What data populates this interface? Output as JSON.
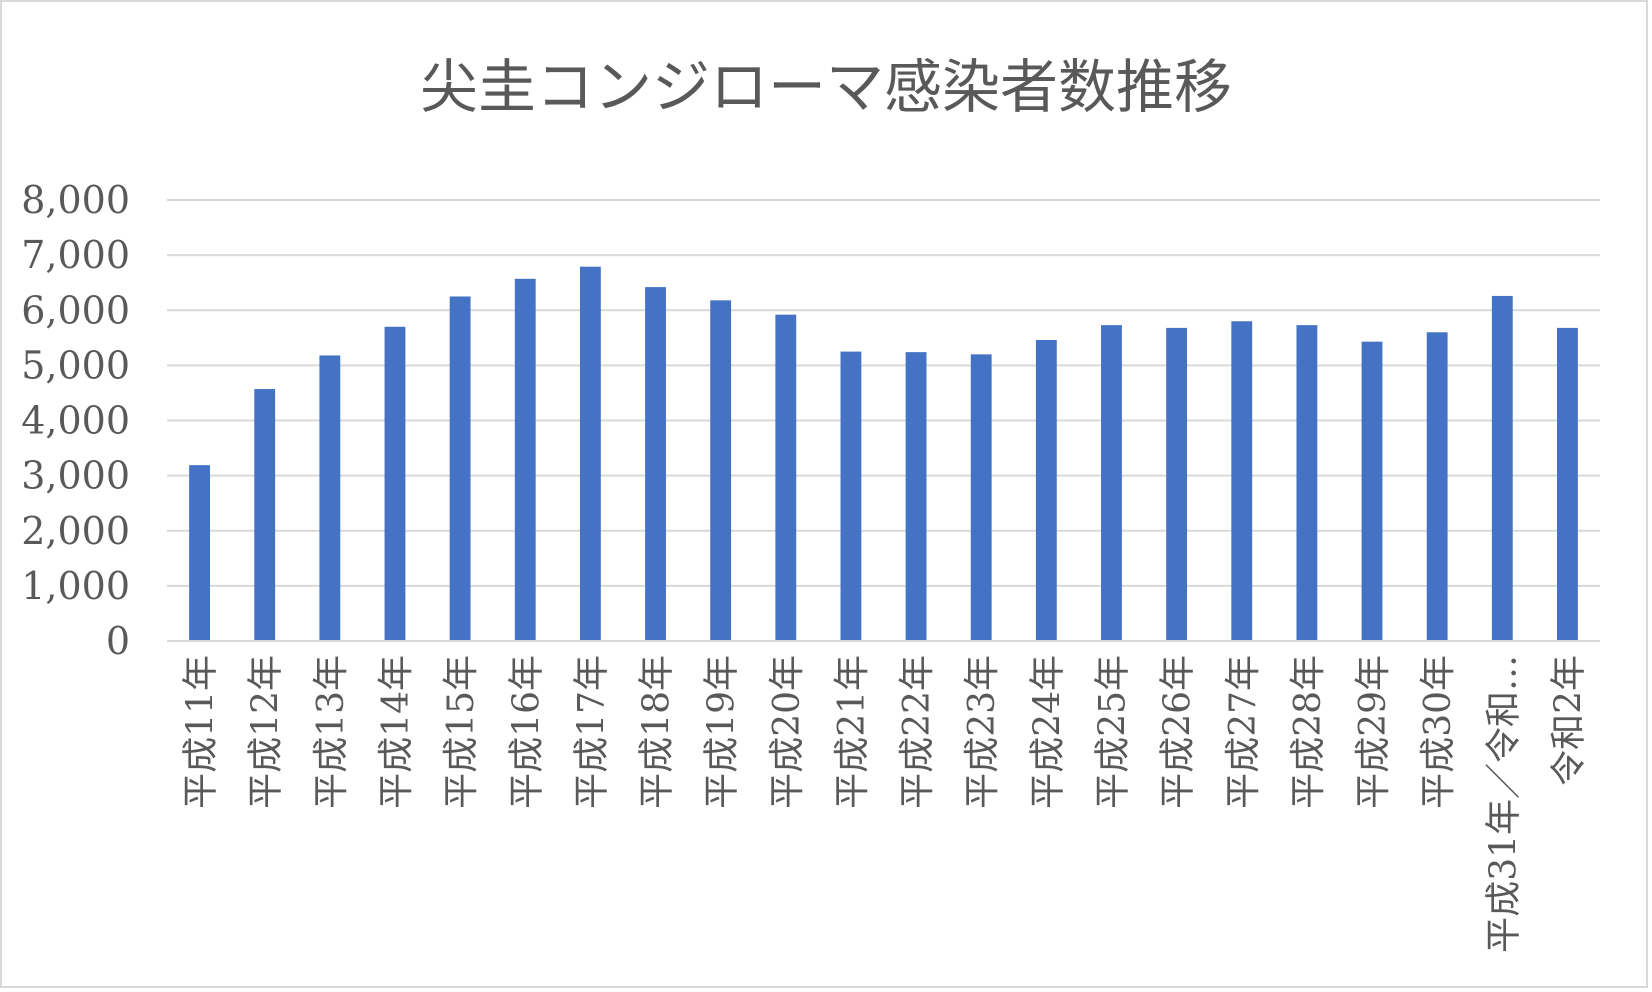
{
  "chart_data": {
    "type": "bar",
    "title": "尖圭コンジローマ感染者数推移",
    "xlabel": "",
    "ylabel": "",
    "ylim": [
      0,
      8000
    ],
    "yticks": [
      0,
      1000,
      2000,
      3000,
      4000,
      5000,
      6000,
      7000,
      8000
    ],
    "ytick_labels": [
      "0",
      "1,000",
      "2,000",
      "3,000",
      "4,000",
      "5,000",
      "6,000",
      "7,000",
      "8,000"
    ],
    "grid": true,
    "legend": "none",
    "bar_color": "#4472c4",
    "categories": [
      "平成11年",
      "平成12年",
      "平成13年",
      "平成14年",
      "平成15年",
      "平成16年",
      "平成17年",
      "平成18年",
      "平成19年",
      "平成20年",
      "平成21年",
      "平成22年",
      "平成23年",
      "平成24年",
      "平成25年",
      "平成26年",
      "平成27年",
      "平成28年",
      "平成29年",
      "平成30年",
      "平成31年／令和…",
      "令和2年"
    ],
    "values": [
      3190,
      4570,
      5180,
      5700,
      6250,
      6570,
      6790,
      6420,
      6180,
      5920,
      5250,
      5240,
      5200,
      5460,
      5730,
      5680,
      5800,
      5730,
      5430,
      5600,
      6260,
      5680
    ]
  }
}
